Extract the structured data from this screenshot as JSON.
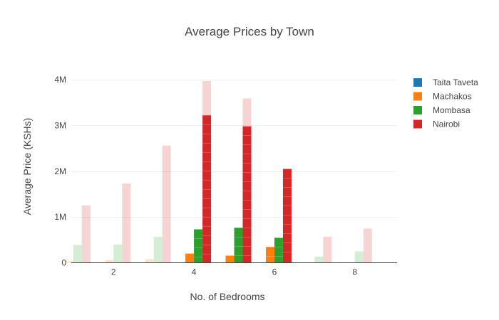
{
  "chart_data": {
    "type": "bar",
    "title": "Average Prices by Town",
    "xlabel": "No. of Bedrooms",
    "ylabel": "Average Price (KSHs)",
    "ylim": [
      0,
      4000000
    ],
    "xlim": [
      0.95,
      9.05
    ],
    "yticks": [
      0,
      1000000,
      2000000,
      3000000,
      4000000
    ],
    "ytick_labels": [
      "0",
      "1M",
      "2M",
      "3M",
      "4M"
    ],
    "xticks": [
      2,
      4,
      6,
      8
    ],
    "xtick_labels": [
      "2",
      "4",
      "6",
      "8"
    ],
    "grid": true,
    "legend_position": "top-right",
    "selected_x": [
      4,
      5,
      6
    ],
    "x": [
      1,
      2,
      3,
      4,
      5,
      6,
      7,
      8
    ],
    "series": [
      {
        "name": "Taita Taveta",
        "color": "#1f77b4",
        "values": [
          0,
          0,
          0,
          0,
          0,
          0,
          0,
          0
        ]
      },
      {
        "name": "Machakos",
        "color": "#ff7f0e",
        "values": [
          40000,
          60000,
          80000,
          200000,
          155000,
          345000,
          0,
          0
        ]
      },
      {
        "name": "Mombasa",
        "color": "#2ca02c",
        "values": [
          390000,
          400000,
          565000,
          730000,
          765000,
          545000,
          135000,
          245000
        ]
      },
      {
        "name": "Nairobi",
        "color": "#d62728",
        "values": [
          1250000,
          1730000,
          2560000,
          3220000,
          2980000,
          2050000,
          570000,
          745000
        ]
      }
    ],
    "faded_top": [
      {
        "x": 4,
        "series": "Nairobi",
        "value": 3970000
      },
      {
        "x": 5,
        "series": "Nairobi",
        "value": 3590000
      }
    ]
  }
}
